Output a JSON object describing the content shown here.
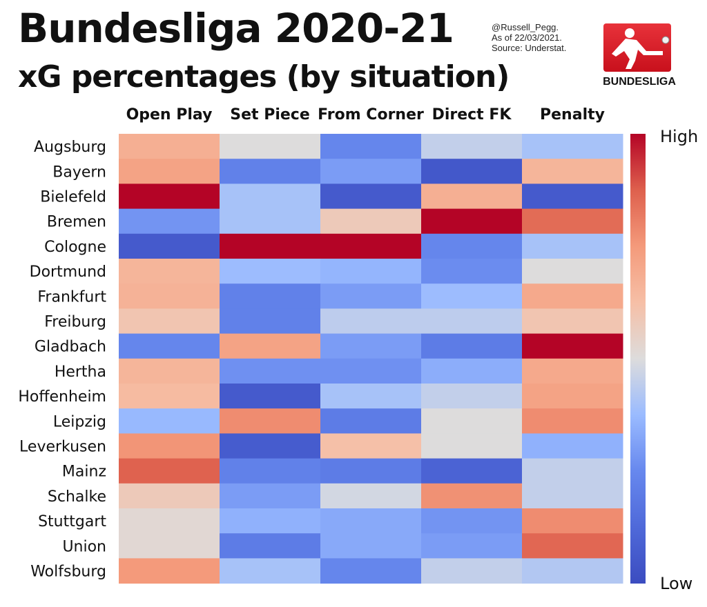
{
  "header": {
    "title": "Bundesliga 2020-21",
    "subtitle": "xG percentages (by situation)"
  },
  "credits": {
    "handle": "@Russell_Pegg.",
    "date": "As of 22/03/2021.",
    "source": "Source: Understat."
  },
  "logo": {
    "text_regular": "BUNDES",
    "text_bold": "LIGA"
  },
  "chart_data": {
    "type": "heatmap",
    "x_categories": [
      "Open Play",
      "Set Piece",
      "From Corner",
      "Direct FK",
      "Penalty"
    ],
    "y_categories": [
      "Augsburg",
      "Bayern",
      "Bielefeld",
      "Bremen",
      "Cologne",
      "Dortmund",
      "Frankfurt",
      "Freiburg",
      "Gladbach",
      "Hertha",
      "Hoffenheim",
      "Leipzig",
      "Leverkusen",
      "Mainz",
      "Schalke",
      "Stuttgart",
      "Union",
      "Wolfsburg"
    ],
    "values": [
      [
        0.68,
        0.5,
        0.24,
        0.45,
        0.4
      ],
      [
        0.72,
        0.22,
        0.3,
        0.05,
        0.66
      ],
      [
        1.0,
        0.4,
        0.06,
        0.68,
        0.06
      ],
      [
        0.28,
        0.4,
        0.58,
        1.0,
        0.85
      ],
      [
        0.06,
        1.0,
        1.0,
        0.24,
        0.4
      ],
      [
        0.66,
        0.38,
        0.36,
        0.26,
        0.5
      ],
      [
        0.67,
        0.22,
        0.3,
        0.38,
        0.7
      ],
      [
        0.6,
        0.22,
        0.44,
        0.44,
        0.6
      ],
      [
        0.24,
        0.72,
        0.3,
        0.2,
        1.0
      ],
      [
        0.66,
        0.27,
        0.27,
        0.34,
        0.7
      ],
      [
        0.64,
        0.06,
        0.4,
        0.45,
        0.72
      ],
      [
        0.37,
        0.78,
        0.2,
        0.5,
        0.78
      ],
      [
        0.76,
        0.07,
        0.62,
        0.5,
        0.35
      ],
      [
        0.87,
        0.22,
        0.2,
        0.1,
        0.45
      ],
      [
        0.58,
        0.3,
        0.48,
        0.77,
        0.45
      ],
      [
        0.52,
        0.35,
        0.33,
        0.28,
        0.78
      ],
      [
        0.52,
        0.2,
        0.33,
        0.3,
        0.86
      ],
      [
        0.75,
        0.4,
        0.24,
        0.45,
        0.42
      ]
    ],
    "colorbar": {
      "high_label": "High",
      "low_label": "Low",
      "colormap": "coolwarm"
    },
    "colors": {
      "low": "#3b4cc0",
      "mid": "#dddcdc",
      "high": "#b40426"
    }
  }
}
